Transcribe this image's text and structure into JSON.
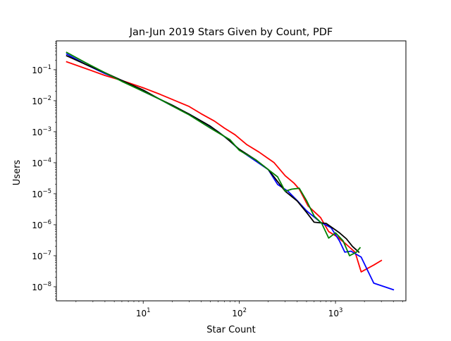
{
  "chart_data": {
    "type": "line",
    "title": "Jan-Jun 2019 Stars Given by Count, PDF",
    "xlabel": "Star Count",
    "ylabel": "Users",
    "xscale": "log",
    "yscale": "log",
    "xlim": [
      1.25,
      5400
    ],
    "ylim": [
      3.5e-09,
      0.85
    ],
    "grid": false,
    "legend": "none",
    "x_ticks": [
      {
        "value": 10,
        "base": "10",
        "exp": "1"
      },
      {
        "value": 100,
        "base": "10",
        "exp": "2"
      },
      {
        "value": 1000,
        "base": "10",
        "exp": "3"
      }
    ],
    "y_ticks": [
      {
        "value": 1e-08,
        "base": "10",
        "exp": "−8"
      },
      {
        "value": 1e-07,
        "base": "10",
        "exp": "−7"
      },
      {
        "value": 1e-06,
        "base": "10",
        "exp": "−6"
      },
      {
        "value": 1e-05,
        "base": "10",
        "exp": "−5"
      },
      {
        "value": 0.0001,
        "base": "10",
        "exp": "−4"
      },
      {
        "value": 0.001,
        "base": "10",
        "exp": "−3"
      },
      {
        "value": 0.01,
        "base": "10",
        "exp": "−2"
      },
      {
        "value": 0.1,
        "base": "10",
        "exp": "−1"
      }
    ],
    "series": [
      {
        "color": "#ff0000",
        "points": [
          [
            1.6,
            0.18
          ],
          [
            2.5,
            0.11
          ],
          [
            4,
            0.065
          ],
          [
            6,
            0.045
          ],
          [
            10,
            0.026
          ],
          [
            15,
            0.016
          ],
          [
            20,
            0.011
          ],
          [
            30,
            0.0065
          ],
          [
            40,
            0.0038
          ],
          [
            55,
            0.0022
          ],
          [
            70,
            0.0013
          ],
          [
            90,
            0.0008
          ],
          [
            120,
            0.00038
          ],
          [
            160,
            0.00022
          ],
          [
            230,
            0.0001
          ],
          [
            300,
            3.8e-05
          ],
          [
            370,
            2.2e-05
          ],
          [
            420,
            1.4e-05
          ],
          [
            520,
            4e-06
          ],
          [
            700,
            1.7e-06
          ],
          [
            850,
            6e-07
          ],
          [
            1050,
            4e-07
          ],
          [
            1300,
            2.3e-07
          ],
          [
            1600,
            1.3e-07
          ],
          [
            1850,
            3e-08
          ],
          [
            2500,
            5e-08
          ],
          [
            3000,
            7e-08
          ]
        ]
      },
      {
        "color": "#0000ff",
        "points": [
          [
            1.6,
            0.32
          ],
          [
            2.5,
            0.15
          ],
          [
            4,
            0.075
          ],
          [
            6,
            0.045
          ],
          [
            10,
            0.02
          ],
          [
            15,
            0.011
          ],
          [
            20,
            0.0068
          ],
          [
            30,
            0.0037
          ],
          [
            45,
            0.0018
          ],
          [
            60,
            0.001
          ],
          [
            80,
            0.0005
          ],
          [
            100,
            0.00026
          ],
          [
            150,
            0.00011
          ],
          [
            200,
            6e-05
          ],
          [
            250,
            2e-05
          ],
          [
            320,
            1.2e-05
          ],
          [
            400,
            6e-06
          ],
          [
            500,
            2.8e-06
          ],
          [
            700,
            1.2e-06
          ],
          [
            900,
            8e-07
          ],
          [
            1100,
            3e-07
          ],
          [
            1250,
            1.3e-07
          ],
          [
            1450,
            1.4e-07
          ],
          [
            1850,
            9e-08
          ],
          [
            2500,
            1.3e-08
          ],
          [
            4000,
            8e-09
          ]
        ]
      },
      {
        "color": "#000000",
        "points": [
          [
            1.6,
            0.28
          ],
          [
            2.5,
            0.15
          ],
          [
            4,
            0.08
          ],
          [
            6,
            0.045
          ],
          [
            10,
            0.022
          ],
          [
            15,
            0.011
          ],
          [
            20,
            0.0072
          ],
          [
            30,
            0.0037
          ],
          [
            50,
            0.0015
          ],
          [
            70,
            0.0007
          ],
          [
            100,
            0.00027
          ],
          [
            150,
            0.00012
          ],
          [
            200,
            6e-05
          ],
          [
            300,
            1.2e-05
          ],
          [
            400,
            5.8e-06
          ],
          [
            500,
            2.5e-06
          ],
          [
            600,
            1.2e-06
          ],
          [
            800,
            1.1e-06
          ],
          [
            1100,
            5.5e-07
          ],
          [
            1300,
            3.5e-07
          ],
          [
            1500,
            2e-07
          ],
          [
            1750,
            1.3e-07
          ]
        ]
      },
      {
        "color": "#008000",
        "points": [
          [
            1.6,
            0.36
          ],
          [
            2.5,
            0.17
          ],
          [
            4,
            0.08
          ],
          [
            6,
            0.042
          ],
          [
            10,
            0.02
          ],
          [
            15,
            0.011
          ],
          [
            20,
            0.0068
          ],
          [
            30,
            0.0035
          ],
          [
            50,
            0.0013
          ],
          [
            70,
            0.0007
          ],
          [
            80,
            0.00055
          ],
          [
            100,
            0.00025
          ],
          [
            150,
            0.00012
          ],
          [
            200,
            6e-05
          ],
          [
            250,
            3.5e-05
          ],
          [
            300,
            1.2e-05
          ],
          [
            350,
            1.4e-05
          ],
          [
            420,
            1.5e-05
          ],
          [
            500,
            6e-06
          ],
          [
            600,
            1.9e-06
          ],
          [
            720,
            1.1e-06
          ],
          [
            850,
            3.7e-07
          ],
          [
            1000,
            5.5e-07
          ],
          [
            1200,
            3e-07
          ],
          [
            1400,
            1e-07
          ],
          [
            1650,
            1.3e-07
          ],
          [
            1800,
            1.8e-07
          ]
        ]
      }
    ]
  }
}
